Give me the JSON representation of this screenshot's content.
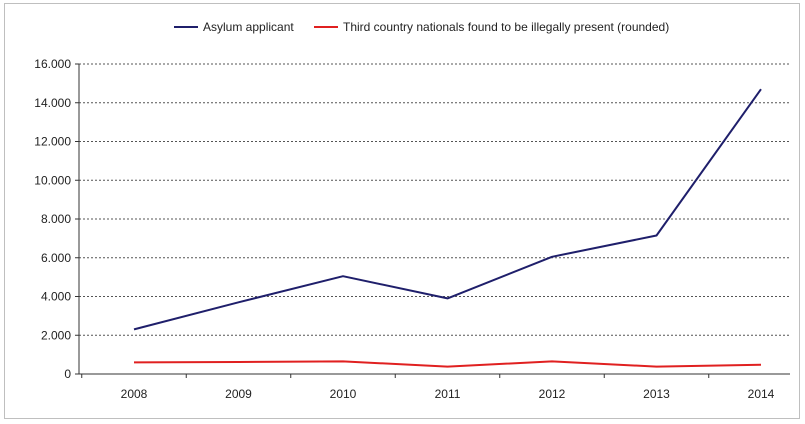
{
  "chart_data": {
    "type": "line",
    "title": "",
    "xlabel": "",
    "ylabel": "",
    "x": [
      "2008",
      "2009",
      "2010",
      "2011",
      "2012",
      "2013",
      "2014"
    ],
    "ylim": [
      0,
      16000
    ],
    "yticks": [
      0,
      2000,
      4000,
      6000,
      8000,
      10000,
      12000,
      14000,
      16000
    ],
    "ytick_labels": [
      "0",
      "2.000",
      "4.000",
      "6.000",
      "8.000",
      "10.000",
      "12.000",
      "14.000",
      "16.000"
    ],
    "grid": "horizontal dotted",
    "legend_position": "top",
    "series": [
      {
        "name": "Asylum applicant",
        "color": "#1f1f6b",
        "values": [
          2300,
          3700,
          5050,
          3900,
          6050,
          7150,
          14700
        ]
      },
      {
        "name": "Third country nationals found to be illegally present (rounded)",
        "color": "#e02020",
        "values": [
          600,
          620,
          650,
          380,
          650,
          380,
          480
        ]
      }
    ]
  }
}
